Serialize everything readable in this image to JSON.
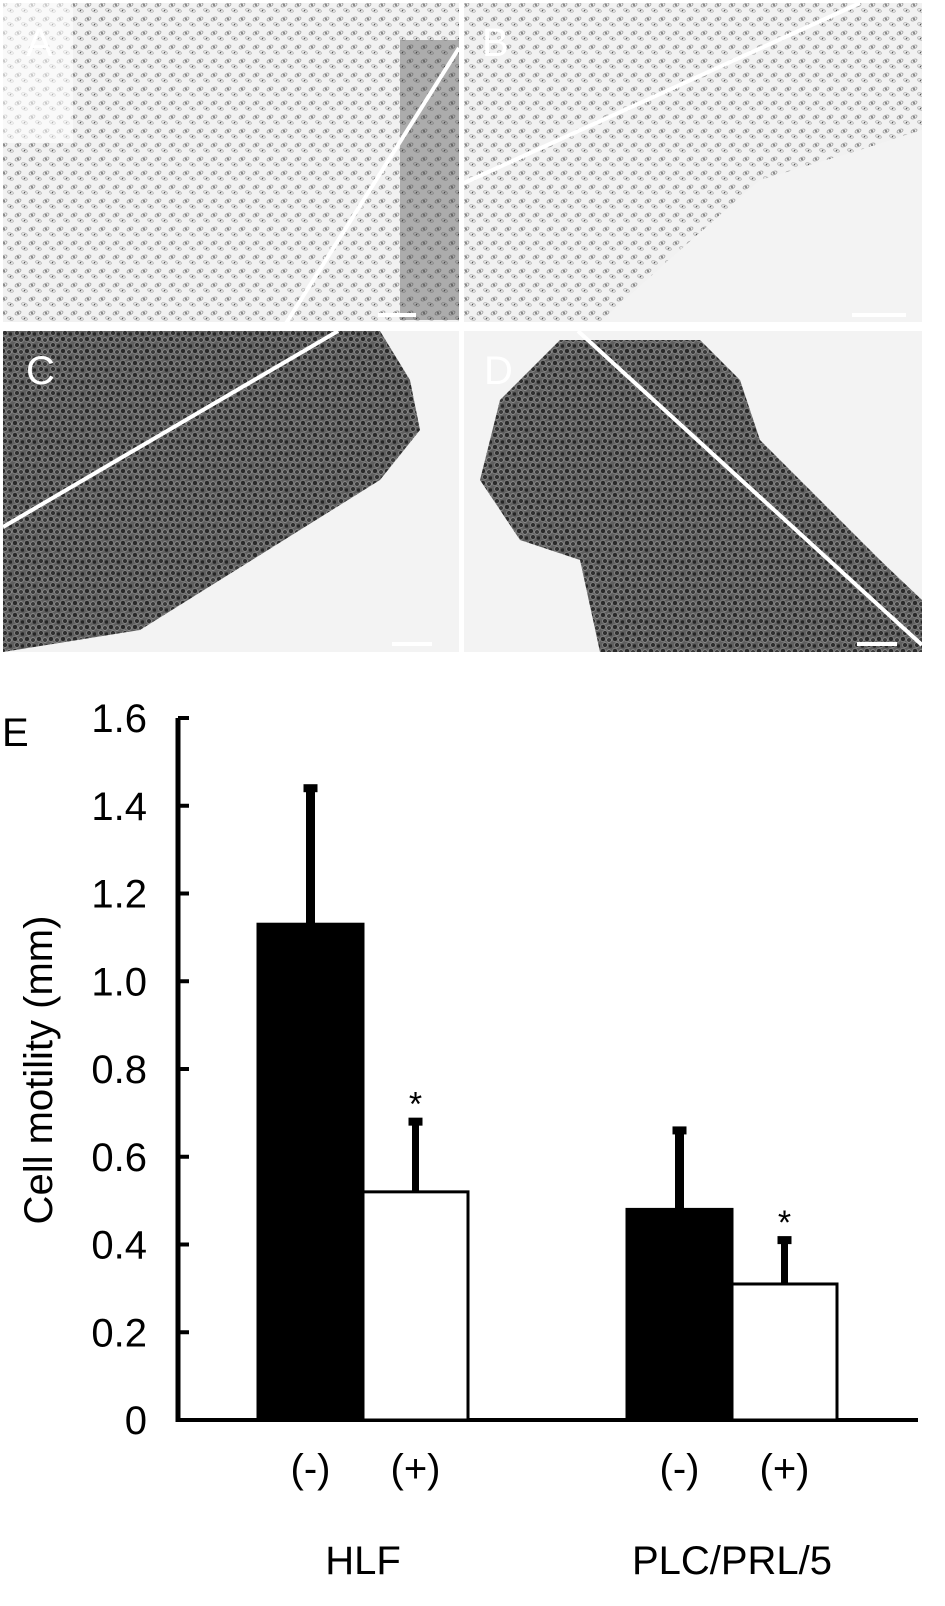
{
  "panels": [
    {
      "letter": "A",
      "tone": "light"
    },
    {
      "letter": "B",
      "tone": "light"
    },
    {
      "letter": "C",
      "tone": "dark"
    },
    {
      "letter": "D",
      "tone": "dark"
    }
  ],
  "chart_panel_letter": "E",
  "chart_data": {
    "type": "bar",
    "ylabel": "Cell motility (mm)",
    "ylim": [
      0,
      1.6
    ],
    "yticks": [
      "0",
      "0.2",
      "0.4",
      "0.6",
      "0.8",
      "1.0",
      "1.2",
      "1.4",
      "1.6"
    ],
    "groups": [
      "HLF",
      "PLC/PRL/5"
    ],
    "subcategories": [
      "(-)",
      "(+)"
    ],
    "series": [
      {
        "values": [
          1.13,
          0.48
        ],
        "errors": [
          0.31,
          0.18
        ],
        "color": "#000000"
      },
      {
        "values": [
          0.52,
          0.31
        ],
        "errors": [
          0.16,
          0.1
        ],
        "color": "#ffffff"
      }
    ],
    "significance": [
      [
        false,
        false
      ],
      [
        "*",
        "*"
      ]
    ]
  }
}
